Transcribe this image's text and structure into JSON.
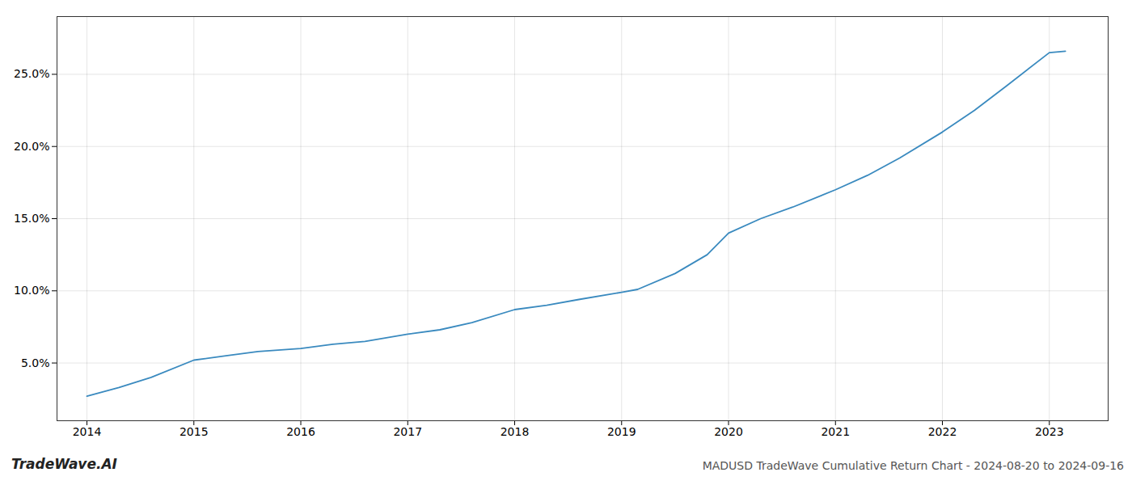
{
  "chart_data": {
    "type": "line",
    "title": "MADUSD TradeWave Cumulative Return Chart - 2024-08-20 to 2024-09-16",
    "annotations": [
      "TradeWave.AI"
    ],
    "x": [
      2014.0,
      2014.3,
      2014.6,
      2015.0,
      2015.3,
      2015.6,
      2016.0,
      2016.3,
      2016.6,
      2017.0,
      2017.3,
      2017.6,
      2018.0,
      2018.3,
      2018.6,
      2019.0,
      2019.15,
      2019.5,
      2019.8,
      2020.0,
      2020.3,
      2020.6,
      2021.0,
      2021.3,
      2021.6,
      2022.0,
      2022.3,
      2022.6,
      2023.0,
      2023.15
    ],
    "values": [
      2.7,
      3.3,
      4.0,
      5.2,
      5.5,
      5.8,
      6.0,
      6.3,
      6.5,
      7.0,
      7.3,
      7.8,
      8.7,
      9.0,
      9.4,
      9.9,
      10.1,
      11.2,
      12.5,
      14.0,
      15.0,
      15.8,
      17.0,
      18.0,
      19.2,
      21.0,
      22.5,
      24.2,
      26.5,
      26.6
    ],
    "color": "#3a8abf",
    "xlim": [
      2013.72,
      2023.55
    ],
    "xticks": [
      2014,
      2015,
      2016,
      2017,
      2018,
      2019,
      2020,
      2021,
      2022,
      2023
    ],
    "ylim": [
      1.0,
      29.0
    ],
    "yticks": [
      {
        "value": 5.0,
        "label": "5.0%"
      },
      {
        "value": 10.0,
        "label": "10.0%"
      },
      {
        "value": 15.0,
        "label": "15.0%"
      },
      {
        "value": 20.0,
        "label": "20.0%"
      },
      {
        "value": 25.0,
        "label": "25.0%"
      }
    ],
    "grid": true
  }
}
